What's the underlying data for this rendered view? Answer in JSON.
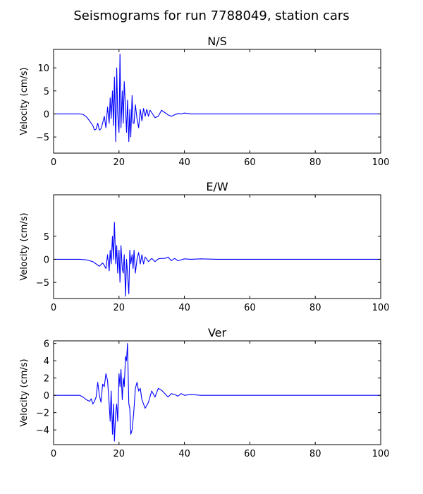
{
  "figure": {
    "title": "Seismograms for run 7788049, station cars",
    "line_color": "#0000ff"
  },
  "chart_data": [
    {
      "type": "line",
      "title": "N/S",
      "xlabel": "",
      "ylabel": "Velocity (cm/s)",
      "xlim": [
        0,
        100
      ],
      "ylim": [
        -8.5,
        14
      ],
      "xticks": [
        0,
        20,
        40,
        60,
        80,
        100
      ],
      "yticks": [
        -5,
        0,
        5,
        10
      ],
      "series": [
        {
          "x": [
            0,
            8,
            9,
            10,
            11,
            12,
            12.5,
            13,
            13.5,
            14,
            14.5,
            15,
            15.5,
            16,
            16.5,
            17,
            17.3,
            17.6,
            18,
            18.3,
            18.6,
            19,
            19.3,
            19.6,
            20,
            20.3,
            20.6,
            21,
            21.3,
            21.6,
            22,
            22.3,
            22.6,
            23,
            23.3,
            23.6,
            24,
            24.3,
            24.6,
            25,
            25.5,
            26,
            26.5,
            27,
            27.5,
            28,
            28.5,
            29,
            29.5,
            30,
            31,
            32,
            33,
            34,
            35,
            36,
            37,
            38,
            39,
            40,
            41,
            42,
            45,
            50,
            100
          ],
          "y": [
            0,
            0,
            -0.1,
            -0.6,
            -1.5,
            -2.5,
            -3.5,
            -3.3,
            -2,
            -3.5,
            -3.2,
            -2,
            -0.5,
            -3,
            1.5,
            -2,
            3.5,
            -1,
            5,
            -2.5,
            8,
            -6,
            10,
            0,
            -4,
            13,
            -3,
            5,
            -2,
            7,
            1,
            -4,
            3,
            -6,
            1,
            -5,
            4,
            -2,
            -2,
            2,
            -1,
            -3,
            1,
            -1.5,
            1.2,
            -0.5,
            1,
            -0.5,
            0.8,
            0.3,
            -0.8,
            -0.5,
            0.8,
            0.3,
            -0.2,
            -0.5,
            -0.2,
            0.1,
            0,
            0.2,
            0.1,
            0,
            0,
            0,
            0
          ]
        }
      ]
    },
    {
      "type": "line",
      "title": "E/W",
      "xlabel": "",
      "ylabel": "Velocity (cm/s)",
      "xlim": [
        0,
        100
      ],
      "ylim": [
        -8.5,
        14
      ],
      "xticks": [
        0,
        20,
        40,
        60,
        80,
        100
      ],
      "yticks": [
        -5,
        0,
        5
      ],
      "series": [
        {
          "x": [
            0,
            8,
            10,
            12,
            13,
            14,
            15,
            15.5,
            16,
            16.5,
            17,
            17.3,
            17.6,
            18,
            18.3,
            18.6,
            19,
            19.3,
            19.6,
            20,
            20.3,
            20.6,
            21,
            21.3,
            21.6,
            22,
            22.3,
            22.6,
            23,
            23.3,
            23.6,
            24,
            24.3,
            24.6,
            25,
            25.5,
            26,
            26.5,
            27,
            27.5,
            28,
            29,
            30,
            31,
            32,
            33,
            34,
            35,
            36,
            37,
            38,
            39,
            40,
            42,
            45,
            50,
            100
          ],
          "y": [
            0,
            0,
            -0.1,
            -0.5,
            -1,
            -1.5,
            -0.8,
            -1.3,
            -2,
            1,
            -2.5,
            2,
            -1,
            5,
            0,
            8,
            -1,
            3,
            -3,
            2,
            -5,
            3,
            -2,
            -3,
            1,
            -8,
            0,
            -3,
            -7.5,
            2,
            -1,
            1,
            -2,
            2,
            -3,
            0,
            1.5,
            -1,
            1,
            -1,
            0.5,
            -0.5,
            0.2,
            -0.5,
            0.1,
            0.2,
            0.2,
            0.5,
            -0.3,
            0.2,
            -0.3,
            -0.1,
            0.1,
            0,
            0.1,
            0,
            0
          ]
        }
      ]
    },
    {
      "type": "line",
      "title": "Ver",
      "xlabel": "",
      "ylabel": "Velocity (cm/s)",
      "xlim": [
        0,
        100
      ],
      "ylim": [
        -5.7,
        6.3
      ],
      "xticks": [
        0,
        20,
        40,
        60,
        80,
        100
      ],
      "yticks": [
        -4,
        -2,
        0,
        2,
        4,
        6
      ],
      "series": [
        {
          "x": [
            0,
            8,
            9,
            10,
            11,
            11.5,
            12,
            12.5,
            13,
            13.5,
            14,
            14.5,
            15,
            15.5,
            16,
            16.5,
            17,
            17.3,
            17.6,
            18,
            18.3,
            18.6,
            19,
            19.3,
            19.6,
            20,
            20.3,
            20.6,
            21,
            21.3,
            21.6,
            22,
            22.3,
            22.6,
            23,
            23.3,
            23.6,
            24,
            24.5,
            25,
            25.5,
            26,
            26.5,
            27,
            27.5,
            28,
            29,
            30,
            31,
            32,
            33,
            34,
            35,
            36,
            37,
            38,
            39,
            40,
            42,
            45,
            50,
            100
          ],
          "y": [
            0,
            0,
            -0.2,
            -0.5,
            -0.7,
            -0.4,
            -1,
            -0.7,
            -0.2,
            1.5,
            0,
            -0.8,
            1.3,
            1,
            2.5,
            1.7,
            -1,
            -3,
            0.5,
            -4.5,
            -1,
            -5.3,
            -2,
            -1,
            -3,
            2.5,
            1,
            3,
            -0.5,
            2,
            1,
            4.5,
            4,
            6,
            -1,
            -1.5,
            -4.5,
            -4,
            -2,
            0.8,
            1.5,
            0.5,
            0.8,
            -0.5,
            -1,
            -1.5,
            -0.8,
            0.5,
            -0.2,
            0.8,
            0.6,
            0.2,
            -0.2,
            0.2,
            0.1,
            -0.1,
            0.2,
            0,
            0.1,
            0,
            0,
            0
          ]
        }
      ]
    }
  ]
}
